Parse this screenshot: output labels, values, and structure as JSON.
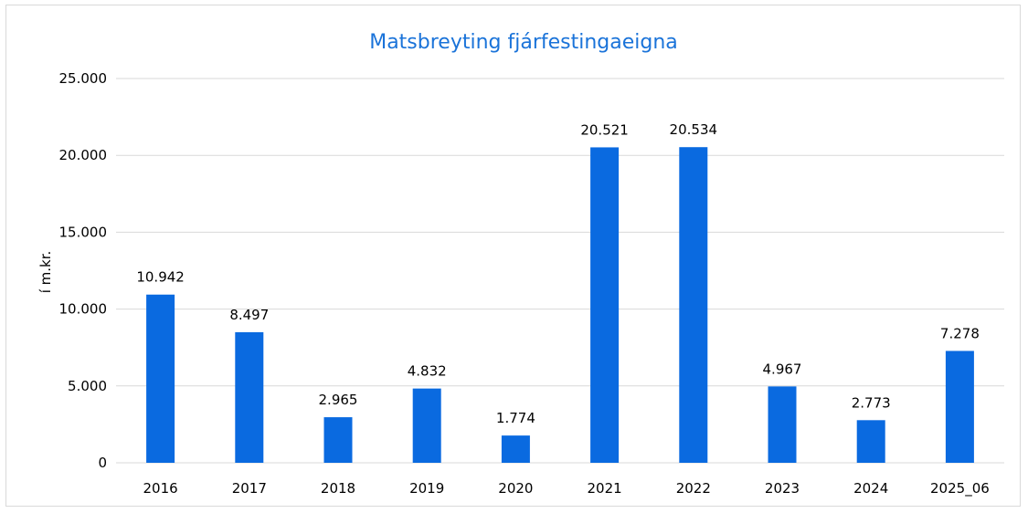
{
  "chart_data": {
    "type": "bar",
    "title": "Matsbreyting fjárfestingaeigna",
    "xlabel": "",
    "ylabel": "í m.kr.",
    "categories": [
      "2016",
      "2017",
      "2018",
      "2019",
      "2020",
      "2021",
      "2022",
      "2023",
      "2024",
      "2025_06"
    ],
    "values": [
      10942,
      8497,
      2965,
      4832,
      1774,
      20521,
      20534,
      4967,
      2773,
      7278
    ],
    "value_labels": [
      "10.942",
      "8.497",
      "2.965",
      "4.832",
      "1.774",
      "20.521",
      "20.534",
      "4.967",
      "2.773",
      "7.278"
    ],
    "ylim": [
      0,
      25000
    ],
    "yticks": [
      0,
      5000,
      10000,
      15000,
      20000,
      25000
    ],
    "ytick_labels": [
      "0",
      "5.000",
      "10.000",
      "15.000",
      "20.000",
      "25.000"
    ],
    "grid": true,
    "legend": "none",
    "bar_color": "#0a6ae0",
    "grid_color": "#d9d9d9",
    "title_color": "#1a73d9"
  }
}
